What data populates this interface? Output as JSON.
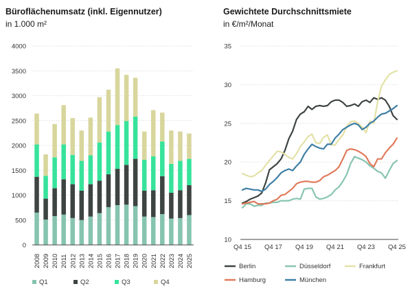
{
  "colors": {
    "Q1": "#86c4b0",
    "Q2": "#3d4441",
    "Q3": "#37e39b",
    "Q4": "#d8d69c",
    "Berlin": "#3d4441",
    "Düsseldorf": "#86c4b0",
    "Frankfurt": "#e3e1a6",
    "Hamburg": "#e0795a",
    "München": "#3f7ea4"
  },
  "chart_data": [
    {
      "type": "bar",
      "stacked": true,
      "title": "Büroflächenumsatz (inkl. Eigennutzer)",
      "subtitle": "in 1.000 m²",
      "categories": [
        "2008",
        "2009",
        "2010",
        "2011",
        "2012",
        "2013",
        "2014",
        "2015",
        "2016",
        "2017",
        "2018",
        "2019",
        "2020",
        "2021",
        "2022",
        "2023",
        "2024",
        "2025"
      ],
      "series": [
        {
          "name": "Q1",
          "values": [
            650,
            510,
            580,
            610,
            540,
            500,
            570,
            640,
            760,
            800,
            810,
            780,
            570,
            560,
            620,
            530,
            540,
            600
          ]
        },
        {
          "name": "Q2",
          "values": [
            720,
            420,
            560,
            710,
            680,
            590,
            650,
            650,
            660,
            730,
            800,
            950,
            520,
            540,
            760,
            520,
            560,
            600
          ]
        },
        {
          "name": "Q3",
          "values": [
            650,
            460,
            620,
            700,
            590,
            600,
            580,
            770,
            860,
            880,
            880,
            850,
            620,
            680,
            700,
            580,
            590,
            530
          ]
        },
        {
          "name": "Q4",
          "values": [
            620,
            430,
            670,
            790,
            740,
            610,
            760,
            910,
            840,
            1140,
            930,
            780,
            570,
            930,
            580,
            670,
            590,
            510
          ]
        }
      ],
      "ylim": [
        0,
        4000
      ],
      "yticks": [
        0,
        500,
        1000,
        1500,
        2000,
        2500,
        3000,
        3500,
        4000
      ],
      "grid": true,
      "legend": "bottom"
    },
    {
      "type": "line",
      "title": "Gewichtete Durchschnittsmiete",
      "subtitle": "in €/m²/Monat",
      "x_ticks": [
        "Q4 15",
        "Q4 17",
        "Q4 19",
        "Q4 21",
        "Q4 23",
        "Q4 25"
      ],
      "x_tick_positions": [
        0,
        8,
        16,
        24,
        32,
        40
      ],
      "ylim": [
        10,
        35
      ],
      "yticks": [
        10,
        15,
        20,
        25,
        30,
        35
      ],
      "grid": true,
      "legend": "bottom",
      "series": [
        {
          "name": "Berlin",
          "values": [
            14.7,
            14.9,
            15.2,
            15.4,
            15.6,
            16.0,
            17.3,
            19.0,
            19.4,
            19.8,
            20.4,
            21.5,
            23.0,
            24.0,
            25.5,
            26.2,
            26.5,
            27.2,
            26.8,
            27.2,
            27.3,
            27.2,
            27.3,
            27.8,
            28.0,
            28.0,
            27.7,
            27.2,
            27.3,
            27.5,
            27.2,
            27.8,
            28.0,
            27.7,
            28.3,
            28.1,
            28.3,
            28.0,
            27.2,
            26.0,
            25.5
          ]
        },
        {
          "name": "Düsseldorf",
          "values": [
            14.1,
            14.6,
            14.6,
            14.3,
            14.4,
            14.4,
            14.7,
            14.7,
            14.8,
            14.8,
            15.0,
            15.0,
            15.0,
            15.2,
            15.3,
            15.2,
            16.5,
            16.6,
            16.6,
            15.5,
            15.2,
            15.3,
            15.5,
            15.8,
            16.4,
            16.8,
            17.5,
            18.4,
            19.8,
            20.7,
            20.5,
            20.3,
            20.0,
            19.5,
            19.2,
            18.8,
            18.6,
            17.9,
            18.9,
            19.8,
            20.2
          ]
        },
        {
          "name": "Frankfurt",
          "values": [
            18.5,
            18.3,
            18.1,
            18.2,
            18.6,
            18.9,
            19.6,
            20.2,
            20.8,
            21.4,
            21.3,
            21.0,
            20.6,
            20.4,
            21.1,
            22.0,
            22.6,
            23.3,
            23.6,
            22.5,
            22.4,
            23.2,
            23.5,
            22.2,
            22.2,
            22.9,
            23.5,
            24.6,
            25.2,
            25.3,
            25.0,
            24.5,
            23.8,
            25.3,
            25.0,
            27.8,
            29.8,
            30.6,
            31.3,
            31.6,
            31.8
          ]
        },
        {
          "name": "Hamburg",
          "values": [
            14.6,
            14.7,
            14.8,
            14.9,
            14.6,
            14.6,
            14.6,
            14.7,
            15.0,
            15.2,
            15.7,
            15.8,
            16.2,
            16.6,
            17.2,
            17.4,
            17.5,
            17.5,
            17.4,
            17.4,
            17.6,
            18.1,
            18.3,
            18.6,
            18.9,
            19.4,
            20.4,
            21.5,
            21.7,
            21.6,
            21.4,
            21.1,
            20.7,
            19.8,
            19.4,
            20.4,
            20.4,
            21.2,
            21.8,
            22.3,
            23.1
          ]
        },
        {
          "name": "München",
          "values": [
            16.4,
            16.6,
            16.5,
            16.4,
            16.4,
            16.2,
            16.5,
            17.1,
            17.5,
            18.0,
            18.6,
            18.9,
            19.1,
            18.9,
            19.5,
            20.0,
            21.0,
            21.7,
            22.3,
            22.0,
            21.8,
            21.7,
            22.3,
            22.3,
            23.1,
            23.6,
            24.2,
            24.5,
            24.8,
            25.0,
            24.8,
            24.2,
            24.5,
            25.0,
            25.3,
            25.8,
            26.2,
            26.3,
            26.6,
            26.9,
            27.3
          ]
        }
      ]
    }
  ]
}
